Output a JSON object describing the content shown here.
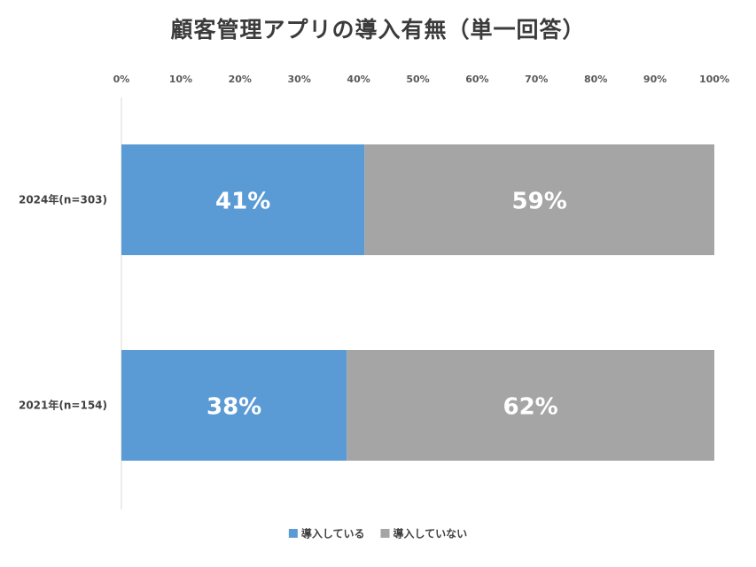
{
  "chart_data": {
    "type": "bar",
    "orientation": "horizontal",
    "stacked": true,
    "title": "顧客管理アプリの導入有無（単一回答）",
    "categories": [
      "2024年(n=303)",
      "2021年(n=154)"
    ],
    "xlim": [
      0,
      100
    ],
    "x_ticks": [
      "0%",
      "10%",
      "20%",
      "30%",
      "40%",
      "50%",
      "60%",
      "70%",
      "80%",
      "90%",
      "100%"
    ],
    "x_tick_values": [
      0,
      10,
      20,
      30,
      40,
      50,
      60,
      70,
      80,
      90,
      100
    ],
    "x_axis_position": "top",
    "grid": false,
    "legend_position": "bottom",
    "series": [
      {
        "name": "導入している",
        "color": "#5b9bd5",
        "values": [
          41,
          38
        ],
        "labels": [
          "41%",
          "38%"
        ]
      },
      {
        "name": "導入していない",
        "color": "#a5a5a5",
        "values": [
          59,
          62
        ],
        "labels": [
          "59%",
          "62%"
        ]
      }
    ]
  }
}
